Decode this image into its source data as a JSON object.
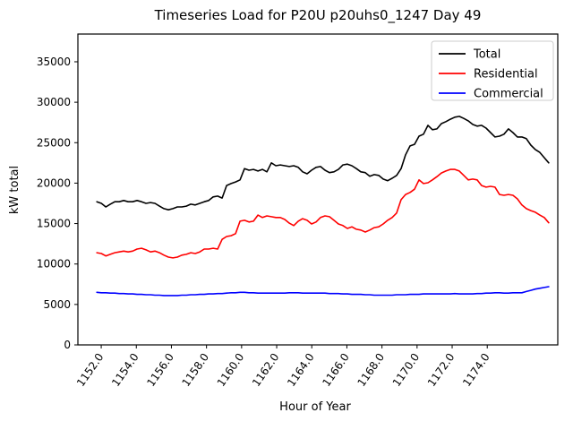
{
  "title": "Timeseries Load for P20U p20uhs0_1247  Day 49",
  "chart_data": {
    "type": "line",
    "title": "Timeseries Load for P20U p20uhs0_1247  Day 49",
    "xlabel": "Hour of Year",
    "ylabel": "kW total",
    "xlim": [
      1150.67,
      1178.02
    ],
    "ylim": [
      0,
      38430
    ],
    "grid": false,
    "xticks": [
      1152,
      1154,
      1156,
      1158,
      1160,
      1162,
      1164,
      1166,
      1168,
      1170,
      1172,
      1174
    ],
    "xtick_labels": [
      "1152.0",
      "1154.0",
      "1156.0",
      "1158.0",
      "1160.0",
      "1162.0",
      "1164.0",
      "1166.0",
      "1168.0",
      "1170.0",
      "1172.0",
      "1174.0"
    ],
    "yticks": [
      0,
      5000,
      10000,
      15000,
      20000,
      25000,
      30000,
      35000
    ],
    "ytick_labels": [
      "0",
      "5000",
      "10000",
      "15000",
      "20000",
      "25000",
      "30000",
      "35000"
    ],
    "x_start": 1151.75,
    "x_step": 0.255,
    "legend": {
      "position": "upper right",
      "entries": [
        {
          "label": "Total",
          "color": "#000000"
        },
        {
          "label": "Residential",
          "color": "#ff0000"
        },
        {
          "label": "Commercial",
          "color": "#0000ff"
        }
      ]
    },
    "series": [
      {
        "name": "Total",
        "color": "#000000",
        "values": [
          17700,
          17500,
          17050,
          17400,
          17700,
          17700,
          17850,
          17700,
          17700,
          17850,
          17700,
          17500,
          17600,
          17500,
          17150,
          16850,
          16700,
          16850,
          17050,
          17050,
          17150,
          17400,
          17300,
          17500,
          17700,
          17850,
          18300,
          18400,
          18150,
          19700,
          19950,
          20150,
          20400,
          21800,
          21600,
          21700,
          21500,
          21700,
          21400,
          22500,
          22150,
          22250,
          22150,
          22050,
          22150,
          21950,
          21400,
          21150,
          21600,
          21950,
          22050,
          21600,
          21300,
          21400,
          21700,
          22250,
          22350,
          22150,
          21800,
          21400,
          21300,
          20850,
          21050,
          20950,
          20500,
          20300,
          20600,
          20950,
          21800,
          23500,
          24600,
          24800,
          25800,
          26050,
          27150,
          26600,
          26700,
          27350,
          27600,
          27900,
          28150,
          28250,
          28000,
          27700,
          27250,
          27050,
          27150,
          26800,
          26250,
          25700,
          25800,
          26050,
          26700,
          26250,
          25700,
          25700,
          25500,
          24700,
          24150,
          23800,
          23150,
          22500
        ]
      },
      {
        "name": "Residential",
        "color": "#ff0000",
        "values": [
          11400,
          11300,
          11000,
          11200,
          11400,
          11500,
          11600,
          11500,
          11600,
          11850,
          11950,
          11750,
          11500,
          11600,
          11400,
          11100,
          10850,
          10750,
          10850,
          11100,
          11200,
          11400,
          11300,
          11500,
          11850,
          11850,
          11950,
          11850,
          13050,
          13400,
          13500,
          13750,
          15300,
          15400,
          15200,
          15300,
          16050,
          15750,
          15950,
          15850,
          15750,
          15750,
          15500,
          15050,
          14750,
          15300,
          15600,
          15400,
          14950,
          15200,
          15750,
          15950,
          15850,
          15400,
          14950,
          14750,
          14400,
          14600,
          14300,
          14200,
          13950,
          14200,
          14500,
          14600,
          14950,
          15400,
          15750,
          16300,
          17950,
          18600,
          18850,
          19250,
          20400,
          19950,
          20050,
          20400,
          20800,
          21250,
          21500,
          21700,
          21700,
          21500,
          20950,
          20400,
          20500,
          20400,
          19700,
          19500,
          19600,
          19500,
          18600,
          18500,
          18600,
          18500,
          18050,
          17300,
          16850,
          16600,
          16400,
          16050,
          15750,
          15100
        ]
      },
      {
        "name": "Commercial",
        "color": "#0000ff",
        "values": [
          6500,
          6450,
          6450,
          6400,
          6400,
          6350,
          6350,
          6300,
          6300,
          6250,
          6250,
          6200,
          6200,
          6150,
          6150,
          6100,
          6100,
          6100,
          6100,
          6150,
          6150,
          6200,
          6200,
          6250,
          6250,
          6300,
          6300,
          6350,
          6350,
          6400,
          6450,
          6450,
          6500,
          6500,
          6450,
          6450,
          6400,
          6400,
          6400,
          6400,
          6400,
          6400,
          6400,
          6450,
          6450,
          6450,
          6400,
          6400,
          6400,
          6400,
          6400,
          6400,
          6350,
          6350,
          6350,
          6300,
          6300,
          6250,
          6250,
          6250,
          6200,
          6200,
          6150,
          6150,
          6150,
          6150,
          6150,
          6200,
          6200,
          6200,
          6250,
          6250,
          6250,
          6300,
          6300,
          6300,
          6300,
          6300,
          6300,
          6300,
          6350,
          6300,
          6300,
          6300,
          6300,
          6350,
          6350,
          6400,
          6400,
          6450,
          6450,
          6400,
          6400,
          6450,
          6450,
          6450,
          6600,
          6750,
          6900,
          7000,
          7100,
          7200
        ]
      }
    ]
  }
}
